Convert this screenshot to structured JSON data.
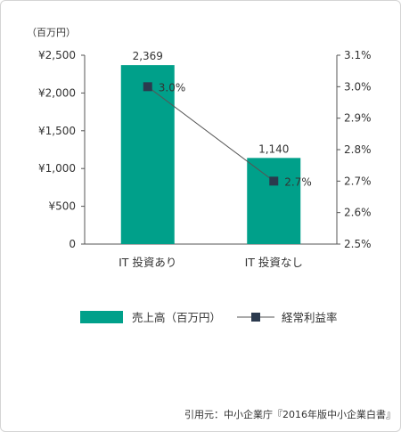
{
  "chart_data": {
    "type": "bar+line",
    "unit_label": "（百万円）",
    "categories": [
      "IT 投資あり",
      "IT 投資なし"
    ],
    "bar_series": {
      "name": "売上高（百万円）",
      "values": [
        2369,
        1140
      ],
      "labels": [
        "2,369",
        "1,140"
      ],
      "color": "#00a08a"
    },
    "line_series": {
      "name": "経常利益率",
      "values": [
        3.0,
        2.7
      ],
      "labels": [
        "3.0%",
        "2.7%"
      ],
      "color": "#2b3a4e"
    },
    "y_left": {
      "range": [
        0,
        2500
      ],
      "ticks": [
        0,
        500,
        1000,
        1500,
        2000,
        2500
      ],
      "tick_labels": [
        "0",
        "¥500",
        "¥1,000",
        "¥1,500",
        "¥2,000",
        "¥2,500"
      ]
    },
    "y_right": {
      "range": [
        2.5,
        3.1
      ],
      "ticks": [
        2.5,
        2.6,
        2.7,
        2.8,
        2.9,
        3.0,
        3.1
      ],
      "tick_labels": [
        "2.5%",
        "2.6%",
        "2.7%",
        "2.8%",
        "2.9%",
        "3.0%",
        "3.1%"
      ]
    },
    "grid": false,
    "legend_position": "bottom"
  },
  "source": "引用元：中小企業庁『2016年版中小企業白書』"
}
